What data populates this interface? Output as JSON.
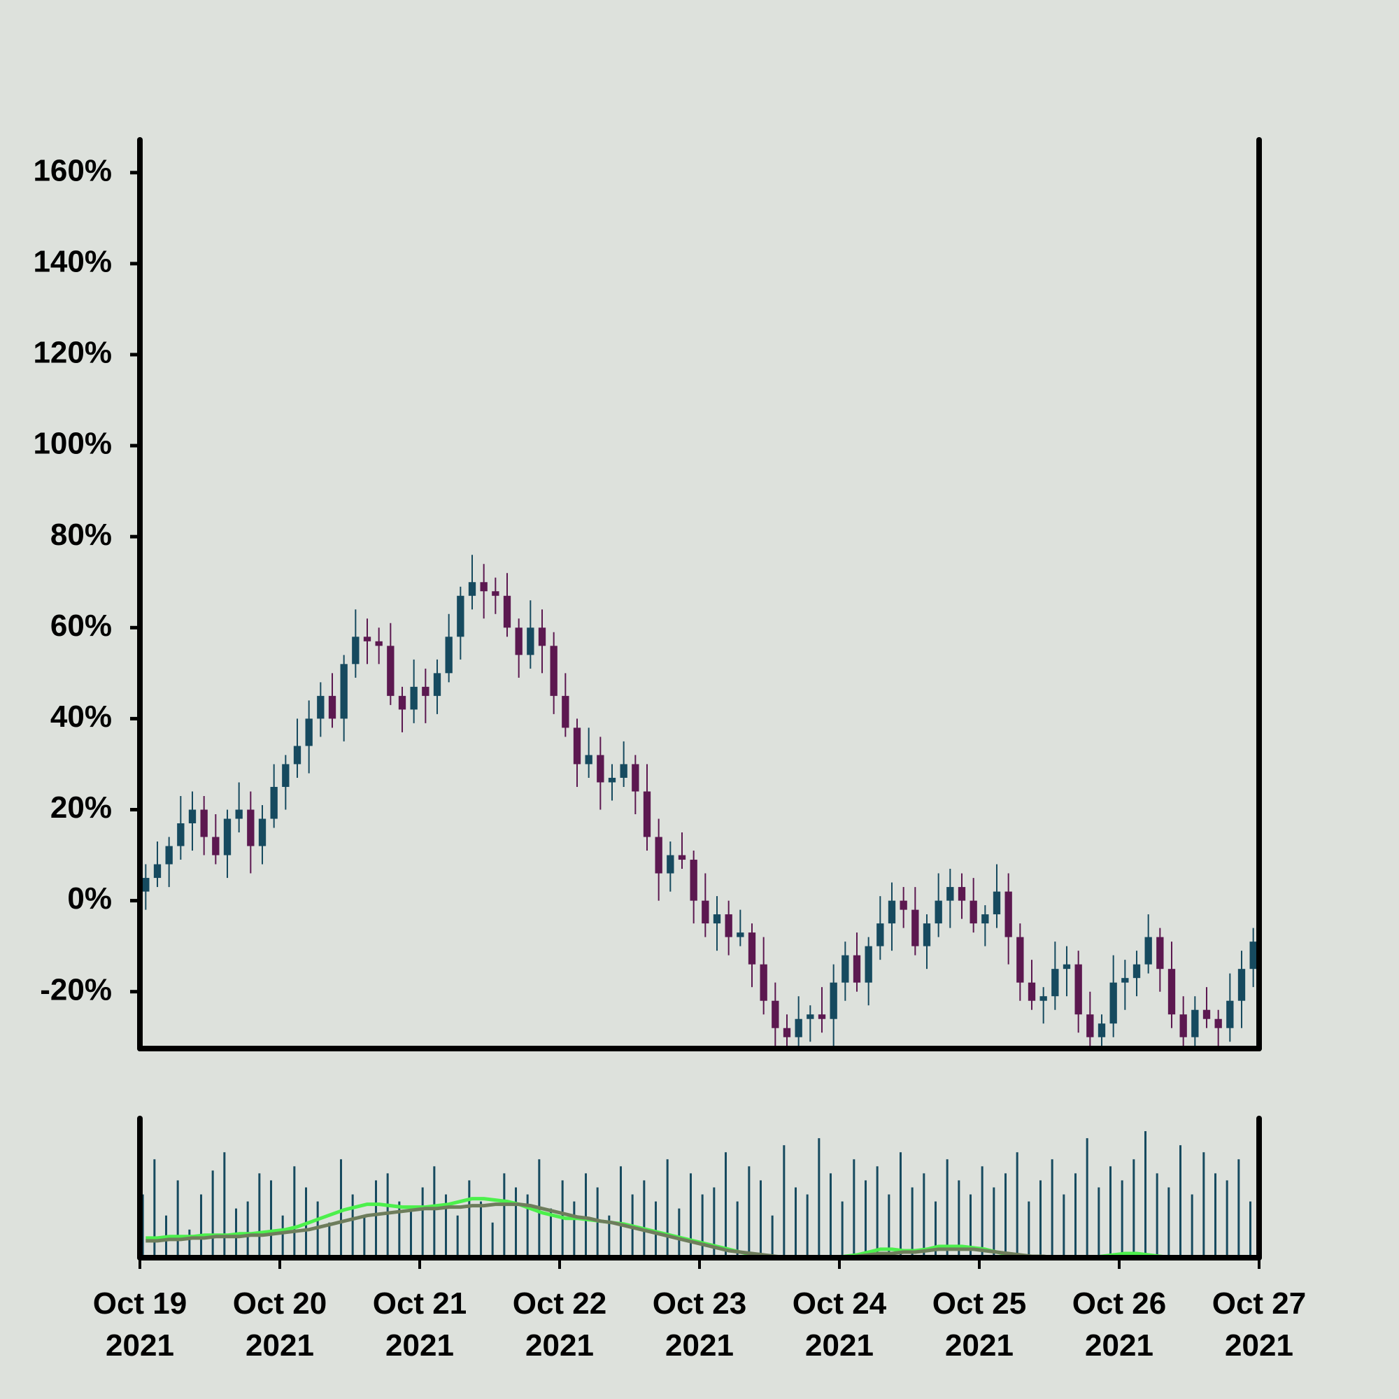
{
  "chart_data": [
    {
      "type": "candlestick",
      "x": [
        0,
        2,
        4,
        6,
        8,
        10,
        12,
        14,
        16,
        18,
        20,
        22,
        24,
        26,
        28,
        30,
        32,
        34,
        36,
        38,
        40,
        42,
        44,
        46,
        48,
        50,
        52,
        54,
        56,
        58,
        60,
        62,
        64,
        66,
        68,
        70,
        72,
        74,
        76,
        78,
        80,
        82,
        84,
        86,
        88,
        90,
        92,
        94,
        96,
        98,
        100,
        102,
        104,
        106,
        108,
        110,
        112,
        114,
        116,
        118,
        120,
        122,
        124,
        126,
        128,
        130,
        132,
        134,
        136,
        138,
        140,
        142,
        144,
        146,
        148,
        150,
        152,
        154,
        156,
        158,
        160,
        162,
        164,
        166,
        168,
        170,
        172,
        174,
        176,
        178,
        180,
        182,
        184,
        186,
        188,
        190
      ],
      "open": [
        2,
        5,
        8,
        12,
        17,
        20,
        14,
        10,
        18,
        20,
        12,
        18,
        25,
        30,
        34,
        40,
        45,
        40,
        52,
        58,
        57,
        56,
        45,
        42,
        47,
        45,
        50,
        58,
        67,
        70,
        68,
        67,
        60,
        54,
        60,
        56,
        45,
        38,
        30,
        32,
        26,
        27,
        30,
        24,
        14,
        6,
        10,
        9,
        0,
        -5,
        -3,
        -8,
        -7,
        -14,
        -22,
        -28,
        -30,
        -26,
        -25,
        -26,
        -18,
        -12,
        -18,
        -10,
        -5,
        0,
        -2,
        -10,
        -5,
        0,
        3,
        0,
        -5,
        -3,
        2,
        -8,
        -18,
        -22,
        -21,
        -15,
        -14,
        -25,
        -30,
        -27,
        -18,
        -17,
        -14,
        -8,
        -15,
        -25,
        -30,
        -24,
        -26,
        -28,
        -22,
        -15
      ],
      "high": [
        8,
        13,
        14,
        23,
        24,
        23,
        19,
        20,
        26,
        24,
        21,
        30,
        32,
        40,
        44,
        48,
        50,
        54,
        64,
        62,
        60,
        61,
        47,
        53,
        51,
        53,
        63,
        69,
        76,
        74,
        71,
        72,
        62,
        66,
        64,
        59,
        50,
        40,
        38,
        36,
        30,
        35,
        32,
        30,
        18,
        13,
        15,
        11,
        6,
        1,
        0,
        -2,
        -5,
        -8,
        -18,
        -25,
        -21,
        -23,
        -19,
        -14,
        -9,
        -7,
        -8,
        1,
        4,
        3,
        3,
        -3,
        6,
        7,
        6,
        5,
        -1,
        8,
        6,
        -5,
        -13,
        -19,
        -9,
        -10,
        -11,
        -20,
        -25,
        -12,
        -13,
        -11,
        -3,
        -6,
        -9,
        -21,
        -21,
        -19,
        -24,
        -16,
        -11,
        -6
      ],
      "low": [
        -2,
        3,
        3,
        9,
        11,
        10,
        8,
        5,
        15,
        6,
        8,
        16,
        20,
        27,
        28,
        36,
        38,
        35,
        49,
        52,
        52,
        43,
        37,
        39,
        39,
        41,
        48,
        53,
        64,
        62,
        63,
        58,
        49,
        51,
        50,
        41,
        36,
        25,
        27,
        20,
        22,
        25,
        19,
        11,
        0,
        2,
        7,
        -5,
        -8,
        -11,
        -12,
        -10,
        -19,
        -25,
        -34,
        -34,
        -32,
        -31,
        -29,
        -32,
        -22,
        -20,
        -23,
        -13,
        -11,
        -6,
        -12,
        -15,
        -8,
        -6,
        -4,
        -7,
        -10,
        -6,
        -14,
        -22,
        -24,
        -27,
        -24,
        -21,
        -29,
        -32,
        -35,
        -30,
        -24,
        -21,
        -16,
        -20,
        -28,
        -36,
        -34,
        -28,
        -33,
        -31,
        -28,
        -19
      ],
      "close": [
        5,
        8,
        12,
        17,
        20,
        14,
        10,
        18,
        20,
        12,
        18,
        25,
        30,
        34,
        40,
        45,
        40,
        52,
        58,
        57,
        56,
        45,
        42,
        47,
        45,
        50,
        58,
        67,
        70,
        68,
        67,
        60,
        54,
        60,
        56,
        45,
        38,
        30,
        32,
        26,
        27,
        30,
        24,
        14,
        6,
        10,
        9,
        0,
        -5,
        -3,
        -8,
        -7,
        -14,
        -22,
        -28,
        -30,
        -26,
        -25,
        -26,
        -18,
        -12,
        -18,
        -10,
        -5,
        0,
        -2,
        -10,
        -5,
        0,
        3,
        0,
        -5,
        -3,
        2,
        -8,
        -18,
        -22,
        -21,
        -15,
        -14,
        -25,
        -30,
        -27,
        -18,
        -17,
        -14,
        -8,
        -15,
        -25,
        -30,
        -24,
        -26,
        -28,
        -22,
        -15,
        -9
      ],
      "up_color": "#164a5f",
      "down_color": "#5c1850",
      "xlim": [
        0,
        192
      ],
      "ylim": [
        -32.5,
        167.5
      ],
      "yticks": [
        {
          "value": -20,
          "label": "-20%"
        },
        {
          "value": 0,
          "label": "0%"
        },
        {
          "value": 20,
          "label": "20%"
        },
        {
          "value": 40,
          "label": "40%"
        },
        {
          "value": 60,
          "label": "60%"
        },
        {
          "value": 80,
          "label": "80%"
        },
        {
          "value": 100,
          "label": "100%"
        },
        {
          "value": 120,
          "label": "120%"
        },
        {
          "value": 140,
          "label": "140%"
        },
        {
          "value": 160,
          "label": "160%"
        }
      ]
    },
    {
      "type": "bar",
      "x": [
        0,
        2,
        4,
        6,
        8,
        10,
        12,
        14,
        16,
        18,
        20,
        22,
        24,
        26,
        28,
        30,
        32,
        34,
        36,
        38,
        40,
        42,
        44,
        46,
        48,
        50,
        52,
        54,
        56,
        58,
        60,
        62,
        64,
        66,
        68,
        70,
        72,
        74,
        76,
        78,
        80,
        82,
        84,
        86,
        88,
        90,
        92,
        94,
        96,
        98,
        100,
        102,
        104,
        106,
        108,
        110,
        112,
        114,
        116,
        118,
        120,
        122,
        124,
        126,
        128,
        130,
        132,
        134,
        136,
        138,
        140,
        142,
        144,
        146,
        148,
        150,
        152,
        154,
        156,
        158,
        160,
        162,
        164,
        166,
        168,
        170,
        172,
        174,
        176,
        178,
        180,
        182,
        184,
        186,
        188,
        190
      ],
      "values": [
        45,
        70,
        30,
        55,
        20,
        45,
        62,
        75,
        35,
        40,
        60,
        55,
        30,
        65,
        50,
        40,
        25,
        70,
        45,
        30,
        55,
        60,
        40,
        35,
        50,
        65,
        45,
        30,
        55,
        40,
        25,
        60,
        50,
        45,
        70,
        35,
        55,
        40,
        60,
        50,
        30,
        65,
        45,
        55,
        40,
        70,
        35,
        60,
        45,
        50,
        75,
        40,
        65,
        55,
        30,
        80,
        50,
        45,
        85,
        60,
        40,
        70,
        55,
        65,
        45,
        75,
        50,
        60,
        40,
        70,
        55,
        45,
        65,
        50,
        60,
        75,
        40,
        55,
        70,
        45,
        60,
        85,
        50,
        65,
        55,
        70,
        90,
        60,
        50,
        80,
        45,
        75,
        60,
        55,
        70,
        40
      ],
      "color": "#164a5f",
      "lines": [
        {
          "color": "#4cf04c",
          "values": [
            14,
            14,
            15,
            15,
            15,
            16,
            16,
            16,
            17,
            17,
            18,
            19,
            20,
            22,
            25,
            28,
            31,
            34,
            36,
            38,
            38,
            37,
            36,
            36,
            36,
            37,
            38,
            40,
            42,
            42,
            41,
            40,
            38,
            35,
            32,
            30,
            28,
            28,
            27,
            26,
            25,
            24,
            22,
            20,
            18,
            16,
            14,
            12,
            10,
            8,
            6,
            4,
            2,
            1,
            0,
            0,
            0,
            0,
            0,
            0,
            1,
            2,
            4,
            6,
            6,
            5,
            5,
            6,
            8,
            8,
            8,
            7,
            6,
            4,
            2,
            1,
            0,
            0,
            0,
            0,
            0,
            0,
            1,
            2,
            3,
            3,
            2,
            1,
            0,
            0,
            0,
            0,
            0,
            0,
            0,
            0
          ]
        },
        {
          "color": "#6e7d5c",
          "values": [
            12,
            12,
            13,
            13,
            14,
            14,
            15,
            15,
            15,
            16,
            16,
            17,
            18,
            19,
            20,
            22,
            24,
            26,
            28,
            30,
            31,
            32,
            33,
            34,
            35,
            35,
            36,
            36,
            37,
            37,
            38,
            38,
            38,
            37,
            35,
            33,
            31,
            29,
            28,
            26,
            25,
            23,
            21,
            19,
            17,
            15,
            13,
            11,
            9,
            7,
            5,
            4,
            3,
            2,
            1,
            0,
            0,
            0,
            0,
            0,
            0,
            1,
            2,
            3,
            3,
            4,
            4,
            5,
            6,
            6,
            6,
            6,
            5,
            4,
            3,
            2,
            1,
            1,
            0,
            0,
            0,
            0,
            0,
            0,
            0,
            0,
            0,
            0,
            0,
            0,
            0,
            0,
            0,
            0,
            0,
            0
          ]
        }
      ],
      "xlim": [
        0,
        192
      ],
      "ylim": [
        0,
        100
      ],
      "xticks": [
        {
          "value": 0,
          "label": "Oct 19\n2021"
        },
        {
          "value": 24,
          "label": "Oct 20\n2021"
        },
        {
          "value": 48,
          "label": "Oct 21\n2021"
        },
        {
          "value": 72,
          "label": "Oct 22\n2021"
        },
        {
          "value": 96,
          "label": "Oct 23\n2021"
        },
        {
          "value": 120,
          "label": "Oct 24\n2021"
        },
        {
          "value": 144,
          "label": "Oct 25\n2021"
        },
        {
          "value": 168,
          "label": "Oct 26\n2021"
        },
        {
          "value": 192,
          "label": "Oct 27\n2021"
        }
      ]
    }
  ]
}
